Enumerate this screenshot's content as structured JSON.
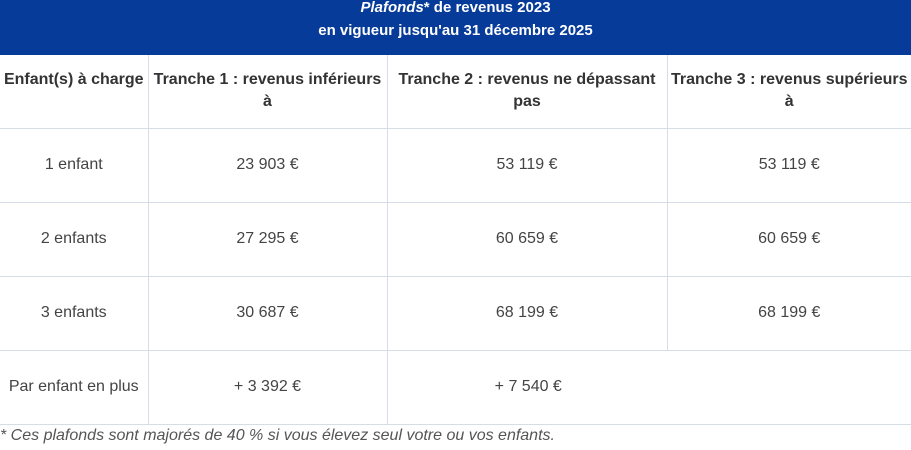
{
  "header": {
    "title_italic": "Plafonds",
    "title_rest": "* de revenus 2023",
    "subtitle": "en vigueur jusqu'au 31 décembre 2025"
  },
  "table": {
    "columns": [
      "Enfant(s) à charge",
      "Tranche 1 : revenus inférieurs à",
      "Tranche 2 : revenus ne dépassant pas",
      "Tranche 3 : revenus supérieurs à"
    ],
    "rows": [
      {
        "label": "1 enfant",
        "t1": "23 903 €",
        "t2": "53 119 €",
        "t3": "53 119 €"
      },
      {
        "label": "2 enfants",
        "t1": "27 295 €",
        "t2": "60 659 €",
        "t3": "60 659 €"
      },
      {
        "label": "3 enfants",
        "t1": "30 687 €",
        "t2": "68 199 €",
        "t3": "68 199 €"
      }
    ],
    "extra_row": {
      "label": "Par enfant en plus",
      "t1": "+ 3 392 €",
      "t23": "+ 7 540 €"
    }
  },
  "footnote": "* Ces plafonds sont majorés de 40 % si vous élevez seul votre ou vos enfants."
}
